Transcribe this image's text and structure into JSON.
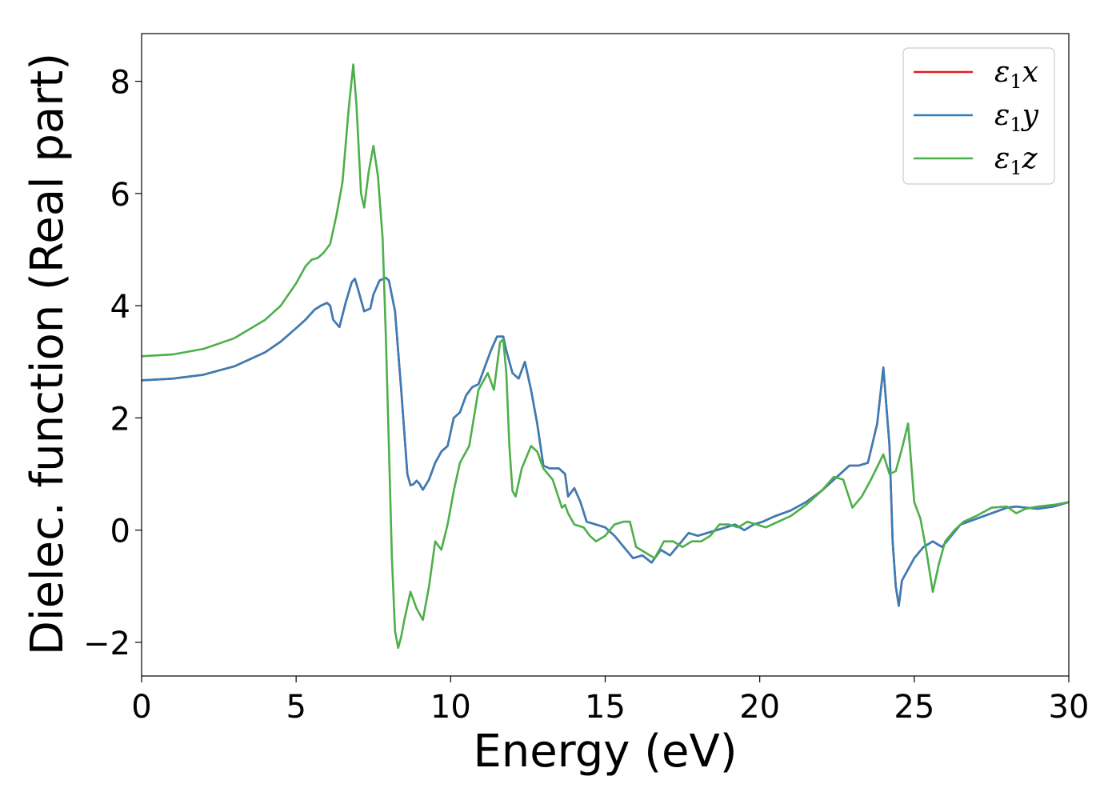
{
  "chart_data": {
    "type": "line",
    "title": "",
    "xlabel": "Energy (eV)",
    "ylabel": "Dielec. function (Real part)",
    "xlim": [
      0,
      30
    ],
    "ylim": [
      -2.6,
      8.85
    ],
    "xticks": [
      0,
      5,
      10,
      15,
      20,
      25,
      30
    ],
    "xtick_labels": [
      "0",
      "5",
      "10",
      "15",
      "20",
      "25",
      "30"
    ],
    "yticks": [
      -2,
      0,
      2,
      4,
      6,
      8
    ],
    "ytick_labels": [
      "−2",
      "0",
      "2",
      "4",
      "6",
      "8"
    ],
    "grid": false,
    "legend_position": "top-right",
    "legend": [
      {
        "symbol": "ε",
        "sub": "1",
        "axis": "x",
        "color": "#e41a1c"
      },
      {
        "symbol": "ε",
        "sub": "1",
        "axis": "y",
        "color": "#377eb8"
      },
      {
        "symbol": "ε",
        "sub": "1",
        "axis": "z",
        "color": "#4daf4a"
      }
    ],
    "series": [
      {
        "color": "#e41a1c",
        "x": [
          0,
          1,
          2,
          3,
          4,
          4.5,
          5,
          5.3,
          5.6,
          5.8,
          6.0,
          6.1,
          6.2,
          6.4,
          6.6,
          6.8,
          6.9,
          7.0,
          7.2,
          7.4,
          7.5,
          7.7,
          7.9,
          8.0,
          8.2,
          8.4,
          8.6,
          8.7,
          8.8,
          8.9,
          9.0,
          9.1,
          9.3,
          9.5,
          9.7,
          9.9,
          10.1,
          10.3,
          10.5,
          10.7,
          10.9,
          11.1,
          11.3,
          11.5,
          11.7,
          11.8,
          12.0,
          12.2,
          12.4,
          12.6,
          12.8,
          13.0,
          13.2,
          13.5,
          13.7,
          13.8,
          14.0,
          14.2,
          14.4,
          14.7,
          15.0,
          15.3,
          15.6,
          15.9,
          16.2,
          16.5,
          16.8,
          17.1,
          17.4,
          17.7,
          18.0,
          18.3,
          18.6,
          18.9,
          19.2,
          19.5,
          19.8,
          20.1,
          20.5,
          21.0,
          21.5,
          22.0,
          22.5,
          22.9,
          23.2,
          23.5,
          23.8,
          24.0,
          24.2,
          24.3,
          24.4,
          24.5,
          24.6,
          24.8,
          25.0,
          25.3,
          25.6,
          25.9,
          26.2,
          26.5,
          27.0,
          27.5,
          28.0,
          28.3,
          28.6,
          29.0,
          29.5,
          30.0
        ],
        "y": [
          2.67,
          2.7,
          2.77,
          2.92,
          3.17,
          3.36,
          3.6,
          3.75,
          3.93,
          4.0,
          4.05,
          4.0,
          3.75,
          3.62,
          4.05,
          4.42,
          4.48,
          4.3,
          3.9,
          3.95,
          4.2,
          4.45,
          4.5,
          4.45,
          3.9,
          2.5,
          1.0,
          0.8,
          0.82,
          0.88,
          0.82,
          0.72,
          0.9,
          1.2,
          1.4,
          1.5,
          2.0,
          2.1,
          2.4,
          2.55,
          2.6,
          2.9,
          3.2,
          3.45,
          3.45,
          3.2,
          2.8,
          2.7,
          3.0,
          2.5,
          1.9,
          1.15,
          1.1,
          1.1,
          1.0,
          0.6,
          0.75,
          0.5,
          0.15,
          0.1,
          0.05,
          -0.1,
          -0.3,
          -0.5,
          -0.45,
          -0.58,
          -0.35,
          -0.45,
          -0.25,
          -0.05,
          -0.1,
          -0.05,
          0.0,
          0.05,
          0.1,
          0.0,
          0.1,
          0.15,
          0.25,
          0.35,
          0.5,
          0.7,
          0.95,
          1.15,
          1.15,
          1.2,
          1.9,
          2.9,
          1.5,
          -0.2,
          -1.0,
          -1.35,
          -0.9,
          -0.7,
          -0.5,
          -0.3,
          -0.2,
          -0.3,
          -0.1,
          0.1,
          0.2,
          0.3,
          0.4,
          0.42,
          0.4,
          0.38,
          0.42,
          0.5
        ]
      },
      {
        "color": "#377eb8",
        "x": [
          0,
          1,
          2,
          3,
          4,
          4.5,
          5,
          5.3,
          5.6,
          5.8,
          6.0,
          6.1,
          6.2,
          6.4,
          6.6,
          6.8,
          6.9,
          7.0,
          7.2,
          7.4,
          7.5,
          7.7,
          7.9,
          8.0,
          8.2,
          8.4,
          8.6,
          8.7,
          8.8,
          8.9,
          9.0,
          9.1,
          9.3,
          9.5,
          9.7,
          9.9,
          10.1,
          10.3,
          10.5,
          10.7,
          10.9,
          11.1,
          11.3,
          11.5,
          11.7,
          11.8,
          12.0,
          12.2,
          12.4,
          12.6,
          12.8,
          13.0,
          13.2,
          13.5,
          13.7,
          13.8,
          14.0,
          14.2,
          14.4,
          14.7,
          15.0,
          15.3,
          15.6,
          15.9,
          16.2,
          16.5,
          16.8,
          17.1,
          17.4,
          17.7,
          18.0,
          18.3,
          18.6,
          18.9,
          19.2,
          19.5,
          19.8,
          20.1,
          20.5,
          21.0,
          21.5,
          22.0,
          22.5,
          22.9,
          23.2,
          23.5,
          23.8,
          24.0,
          24.2,
          24.3,
          24.4,
          24.5,
          24.6,
          24.8,
          25.0,
          25.3,
          25.6,
          25.9,
          26.2,
          26.5,
          27.0,
          27.5,
          28.0,
          28.3,
          28.6,
          29.0,
          29.5,
          30.0
        ],
        "y": [
          2.67,
          2.7,
          2.77,
          2.92,
          3.17,
          3.36,
          3.6,
          3.75,
          3.93,
          4.0,
          4.05,
          4.0,
          3.75,
          3.62,
          4.05,
          4.42,
          4.48,
          4.3,
          3.9,
          3.95,
          4.2,
          4.45,
          4.5,
          4.45,
          3.9,
          2.5,
          1.0,
          0.8,
          0.82,
          0.88,
          0.82,
          0.72,
          0.9,
          1.2,
          1.4,
          1.5,
          2.0,
          2.1,
          2.4,
          2.55,
          2.6,
          2.9,
          3.2,
          3.45,
          3.45,
          3.2,
          2.8,
          2.7,
          3.0,
          2.5,
          1.9,
          1.15,
          1.1,
          1.1,
          1.0,
          0.6,
          0.75,
          0.5,
          0.15,
          0.1,
          0.05,
          -0.1,
          -0.3,
          -0.5,
          -0.45,
          -0.58,
          -0.35,
          -0.45,
          -0.25,
          -0.05,
          -0.1,
          -0.05,
          0.0,
          0.05,
          0.1,
          0.0,
          0.1,
          0.15,
          0.25,
          0.35,
          0.5,
          0.7,
          0.95,
          1.15,
          1.15,
          1.2,
          1.9,
          2.9,
          1.5,
          -0.2,
          -1.0,
          -1.35,
          -0.9,
          -0.7,
          -0.5,
          -0.3,
          -0.2,
          -0.3,
          -0.1,
          0.1,
          0.2,
          0.3,
          0.4,
          0.42,
          0.4,
          0.38,
          0.42,
          0.5
        ]
      },
      {
        "color": "#4daf4a",
        "x": [
          0,
          1,
          2,
          3,
          4,
          4.5,
          5,
          5.3,
          5.5,
          5.7,
          5.9,
          6.1,
          6.3,
          6.5,
          6.7,
          6.85,
          6.95,
          7.1,
          7.2,
          7.35,
          7.5,
          7.65,
          7.8,
          7.9,
          8.0,
          8.1,
          8.2,
          8.3,
          8.4,
          8.5,
          8.7,
          8.9,
          9.1,
          9.3,
          9.5,
          9.7,
          9.9,
          10.1,
          10.3,
          10.6,
          10.9,
          11.2,
          11.4,
          11.6,
          11.7,
          11.8,
          11.9,
          12.0,
          12.1,
          12.3,
          12.6,
          12.8,
          13.0,
          13.3,
          13.6,
          13.7,
          13.8,
          14.0,
          14.3,
          14.5,
          14.7,
          15.0,
          15.3,
          15.6,
          15.8,
          16.0,
          16.3,
          16.6,
          16.9,
          17.2,
          17.5,
          17.8,
          18.1,
          18.4,
          18.7,
          19.0,
          19.3,
          19.6,
          19.9,
          20.2,
          20.6,
          21.0,
          21.5,
          22.0,
          22.4,
          22.7,
          23.0,
          23.3,
          23.6,
          24.0,
          24.2,
          24.4,
          24.6,
          24.8,
          25.0,
          25.2,
          25.4,
          25.6,
          25.8,
          26.0,
          26.3,
          26.6,
          27.0,
          27.5,
          28.0,
          28.3,
          28.6,
          29.0,
          29.5,
          30.0
        ],
        "y": [
          3.1,
          3.13,
          3.23,
          3.42,
          3.75,
          4.0,
          4.4,
          4.7,
          4.82,
          4.85,
          4.95,
          5.1,
          5.6,
          6.2,
          7.5,
          8.3,
          7.6,
          6.0,
          5.75,
          6.4,
          6.85,
          6.3,
          5.2,
          3.5,
          1.5,
          -0.5,
          -1.8,
          -2.1,
          -1.9,
          -1.6,
          -1.1,
          -1.4,
          -1.6,
          -1.0,
          -0.2,
          -0.35,
          0.1,
          0.7,
          1.2,
          1.5,
          2.5,
          2.8,
          2.5,
          3.35,
          3.4,
          2.8,
          1.5,
          0.7,
          0.6,
          1.1,
          1.5,
          1.4,
          1.1,
          0.9,
          0.4,
          0.45,
          0.3,
          0.1,
          0.05,
          -0.1,
          -0.2,
          -0.1,
          0.1,
          0.15,
          0.15,
          -0.3,
          -0.4,
          -0.5,
          -0.2,
          -0.2,
          -0.3,
          -0.2,
          -0.2,
          -0.1,
          0.1,
          0.1,
          0.05,
          0.15,
          0.1,
          0.05,
          0.15,
          0.25,
          0.45,
          0.7,
          0.95,
          0.9,
          0.4,
          0.6,
          0.9,
          1.35,
          1.0,
          1.05,
          1.45,
          1.9,
          0.5,
          0.2,
          -0.4,
          -1.1,
          -0.6,
          -0.2,
          0.0,
          0.15,
          0.25,
          0.4,
          0.42,
          0.3,
          0.38,
          0.42,
          0.45,
          0.5
        ]
      }
    ]
  }
}
